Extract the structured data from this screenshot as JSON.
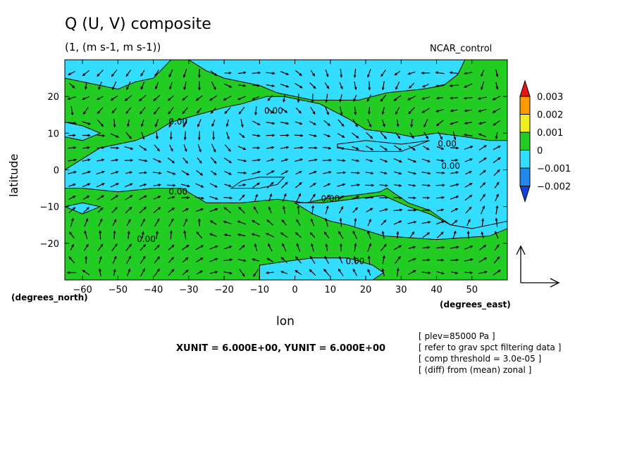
{
  "header": {
    "title": "Q (U, V) composite",
    "subtitle": "(1, (m s-1, m s-1))",
    "dataset": "NCAR_control"
  },
  "axes": {
    "ylabel": "latitude",
    "xlabel": "lon",
    "y_unit": "(degrees_north)",
    "x_unit": "(degrees_east)"
  },
  "vector_units": "XUNIT = 6.000E+00, YUNIT = 6.000E+00",
  "notes": [
    "[ plev=85000 Pa ]",
    "[ refer to grav spct filtering data ]",
    "[ comp threshold = 3.0e-05 ]",
    "[ (diff) from (mean) zonal ]"
  ],
  "colors": {
    "positive_fill": "#22cc22",
    "negative_fill": "#33ddff",
    "cb_003": "#ee1111",
    "cb_002": "#ff9900",
    "cb_001": "#eeee22",
    "cb_0": "#22cc22",
    "cb_m001": "#33ddff",
    "cb_m002": "#2288ee",
    "cb_m003": "#1144dd"
  },
  "chart_data": {
    "type": "heatmap",
    "overlay": "vector",
    "xlim": [
      -65,
      60
    ],
    "ylim": [
      -30,
      30
    ],
    "x_ticks": [
      -60,
      -50,
      -40,
      -30,
      -20,
      -10,
      0,
      10,
      20,
      30,
      40,
      50
    ],
    "x_tick_labels": [
      "−60",
      "−50",
      "−40",
      "−30",
      "−20",
      "−10",
      "0",
      "10",
      "20",
      "30",
      "40",
      "50"
    ],
    "y_ticks": [
      -20,
      -10,
      0,
      10,
      20
    ],
    "y_tick_labels": [
      "−20",
      "−10",
      "0",
      "10",
      "20"
    ],
    "colorbar": {
      "levels": [
        0.003,
        0.002,
        0.001,
        0,
        -0.001,
        -0.002
      ],
      "labels": [
        "0.003",
        "0.002",
        "0.001",
        "0",
        "−0.001",
        "−0.002"
      ]
    },
    "contour_labels": [
      {
        "text": "0.00",
        "lon": -33,
        "lat": 13
      },
      {
        "text": "0.00",
        "lon": -6,
        "lat": 16
      },
      {
        "text": "0.00",
        "lon": 43,
        "lat": 7
      },
      {
        "text": "0.00",
        "lon": 44,
        "lat": 1
      },
      {
        "text": "0.00",
        "lon": -33,
        "lat": -6
      },
      {
        "text": "0.00",
        "lon": 10,
        "lat": -8
      },
      {
        "text": "0.00",
        "lon": -42,
        "lat": -19
      },
      {
        "text": "0.00",
        "lon": 17,
        "lat": -25
      }
    ],
    "negative_regions": [
      [
        [
          -65,
          30
        ],
        [
          -65,
          25
        ],
        [
          -55,
          23
        ],
        [
          -50,
          22
        ],
        [
          -45,
          24
        ],
        [
          -40,
          25
        ],
        [
          -35,
          30
        ]
      ],
      [
        [
          -30,
          30
        ],
        [
          -25,
          27
        ],
        [
          -20,
          25
        ],
        [
          -10,
          23
        ],
        [
          -5,
          21
        ],
        [
          5,
          19
        ],
        [
          18,
          19
        ],
        [
          26,
          21
        ],
        [
          36,
          22
        ],
        [
          42,
          23
        ],
        [
          46,
          26
        ],
        [
          48,
          30
        ]
      ],
      [
        [
          -65,
          13
        ],
        [
          -60,
          12
        ],
        [
          -55,
          10
        ],
        [
          -60,
          8
        ],
        [
          -65,
          9
        ]
      ],
      [
        [
          -65,
          -5
        ],
        [
          -65,
          0
        ],
        [
          -60,
          3
        ],
        [
          -55,
          6
        ],
        [
          -50,
          7
        ],
        [
          -45,
          8
        ],
        [
          -40,
          10
        ],
        [
          -35,
          13
        ],
        [
          -20,
          17
        ],
        [
          -15,
          18
        ],
        [
          -8,
          20
        ],
        [
          -3,
          20
        ],
        [
          7,
          18
        ],
        [
          15,
          14
        ],
        [
          20,
          11
        ],
        [
          28,
          10
        ],
        [
          33,
          9
        ],
        [
          40,
          10
        ],
        [
          48,
          9
        ],
        [
          55,
          8
        ],
        [
          60,
          8
        ],
        [
          60,
          -15
        ],
        [
          50,
          -16
        ],
        [
          44,
          -15
        ],
        [
          38,
          -11
        ],
        [
          32,
          -9
        ],
        [
          26,
          -5
        ],
        [
          24,
          -6
        ],
        [
          16,
          -7
        ],
        [
          8,
          -8
        ],
        [
          3,
          -9
        ],
        [
          -5,
          -8
        ],
        [
          -15,
          -9
        ],
        [
          -25,
          -9
        ],
        [
          -32,
          -5
        ],
        [
          -40,
          -5
        ],
        [
          -50,
          -6
        ],
        [
          -60,
          -5
        ]
      ],
      [
        [
          12,
          6
        ],
        [
          20,
          5
        ],
        [
          30,
          5
        ],
        [
          38,
          8
        ],
        [
          30,
          7
        ],
        [
          20,
          8
        ],
        [
          12,
          7
        ]
      ],
      [
        [
          0,
          -9
        ],
        [
          5,
          -12
        ],
        [
          10,
          -14
        ],
        [
          15,
          -15
        ],
        [
          25,
          -18
        ],
        [
          40,
          -19
        ],
        [
          55,
          -18
        ],
        [
          60,
          -16
        ],
        [
          60,
          -14
        ],
        [
          50,
          -16
        ],
        [
          44,
          -15
        ],
        [
          38,
          -12
        ],
        [
          32,
          -10
        ],
        [
          25,
          -7
        ],
        [
          16,
          -8
        ],
        [
          8,
          -9
        ]
      ],
      [
        [
          -18,
          -5
        ],
        [
          -15,
          -3
        ],
        [
          -10,
          -2
        ],
        [
          -3,
          -2
        ],
        [
          -5,
          -4
        ],
        [
          -10,
          -5
        ]
      ],
      [
        [
          -65,
          -10
        ],
        [
          -60,
          -12
        ],
        [
          -55,
          -10
        ],
        [
          -60,
          -9
        ]
      ],
      [
        [
          -10,
          -28
        ],
        [
          -10,
          -26
        ],
        [
          -3,
          -25
        ],
        [
          5,
          -24
        ],
        [
          15,
          -24
        ],
        [
          22,
          -26
        ],
        [
          25,
          -28
        ],
        [
          22,
          -30
        ],
        [
          -10,
          -30
        ]
      ]
    ]
  }
}
